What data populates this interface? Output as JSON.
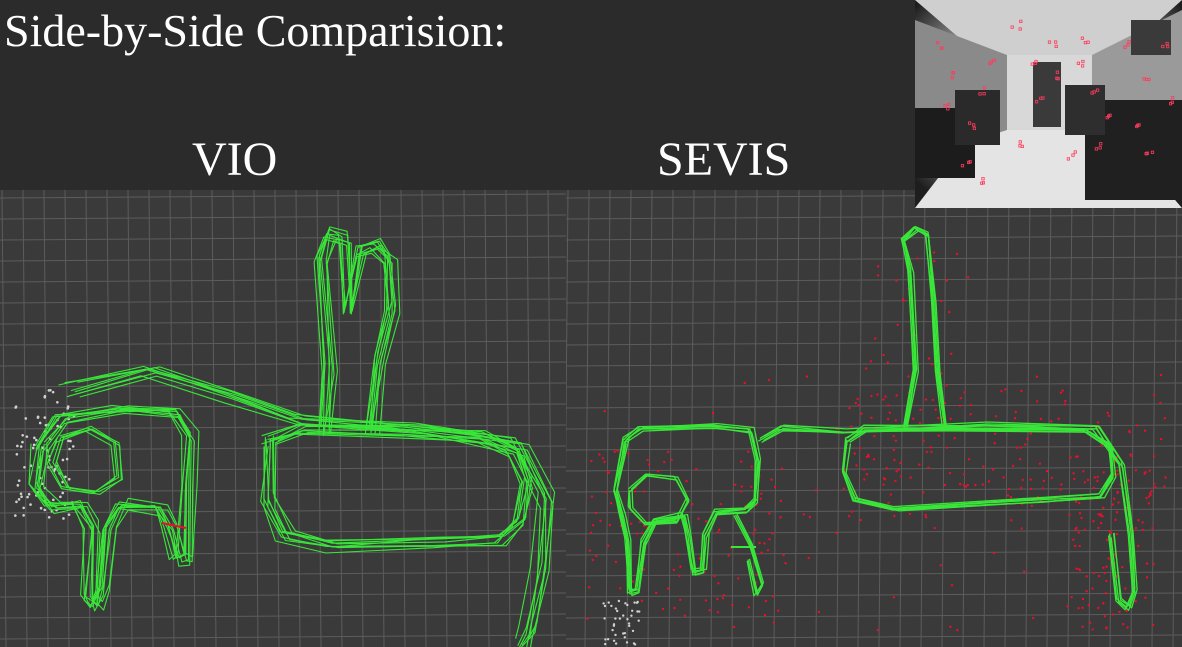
{
  "heading": "Side-by-Side Comparision:",
  "panels": {
    "left_label": "VIO",
    "right_label": "SEVIS"
  },
  "colors": {
    "background": "#2b2b2b",
    "grid_background": "#3a3a3a",
    "grid_line": "#5c5c5c",
    "trajectory": "#39e639",
    "map_points": "#e8102a",
    "lost_points": "#d0d0d0",
    "feature_marker": "#ff3b5c"
  },
  "icons": {
    "camera_view": "camera-preview-image"
  }
}
